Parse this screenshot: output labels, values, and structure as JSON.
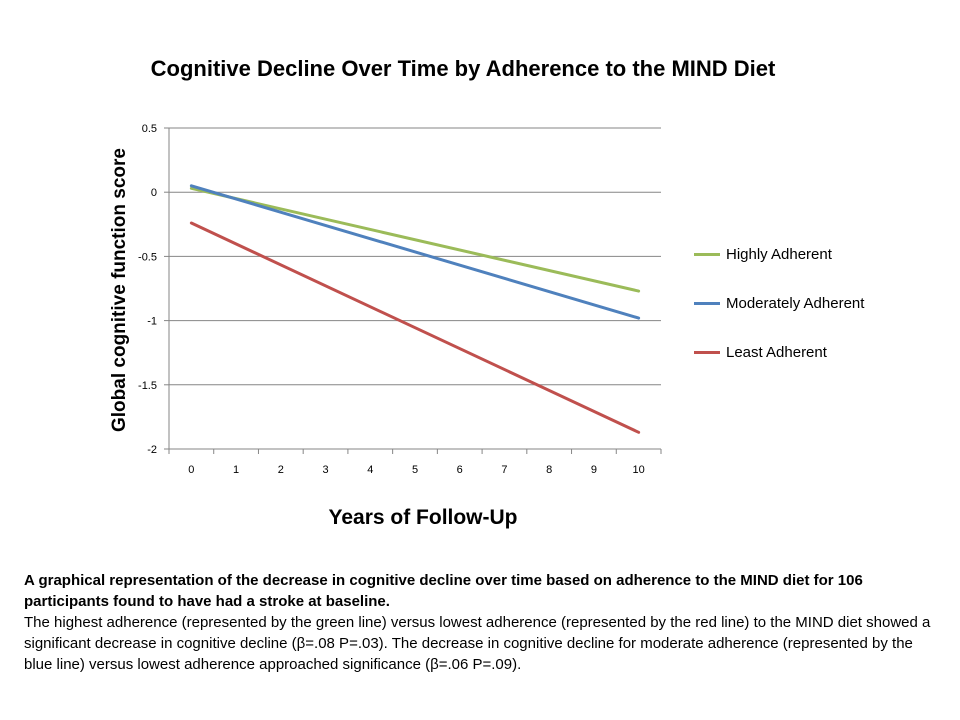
{
  "chart_data": {
    "type": "line",
    "title": "Cognitive Decline Over Time by Adherence to the MIND Diet",
    "xlabel": "Years of Follow-Up",
    "ylabel": "Global cognitive function score",
    "x": [
      0,
      10
    ],
    "x_ticks": [
      "0",
      "1",
      "2",
      "3",
      "4",
      "5",
      "6",
      "7",
      "8",
      "9",
      "10"
    ],
    "y_ticks": [
      "0.5",
      "0",
      "-0.5",
      "-1",
      "-1.5",
      "-2"
    ],
    "xlim": [
      -0.5,
      10.5
    ],
    "ylim": [
      -2,
      0.5
    ],
    "grid": "horizontal",
    "legend_position": "right",
    "series": [
      {
        "name": "Highly Adherent",
        "color": "#9bbb59",
        "values": [
          0.03,
          -0.77
        ]
      },
      {
        "name": "Moderately Adherent",
        "color": "#4f81bd",
        "values": [
          0.05,
          -0.98
        ]
      },
      {
        "name": "Least Adherent",
        "color": "#c0504d",
        "values": [
          -0.24,
          -1.87
        ]
      }
    ]
  },
  "caption": {
    "heading": "A graphical representation of the decrease in cognitive decline over time based on adherence to the MIND diet for 106 participants found to have had a stroke at baseline.",
    "body": "The highest adherence (represented by the green line) versus lowest adherence (represented by the red line)  to the MIND diet showed a significant decrease in cognitive decline (β=.08 P=.03). The decrease in cognitive decline for moderate adherence (represented by the blue line) versus lowest adherence approached significance (β=.06 P=.09)."
  }
}
